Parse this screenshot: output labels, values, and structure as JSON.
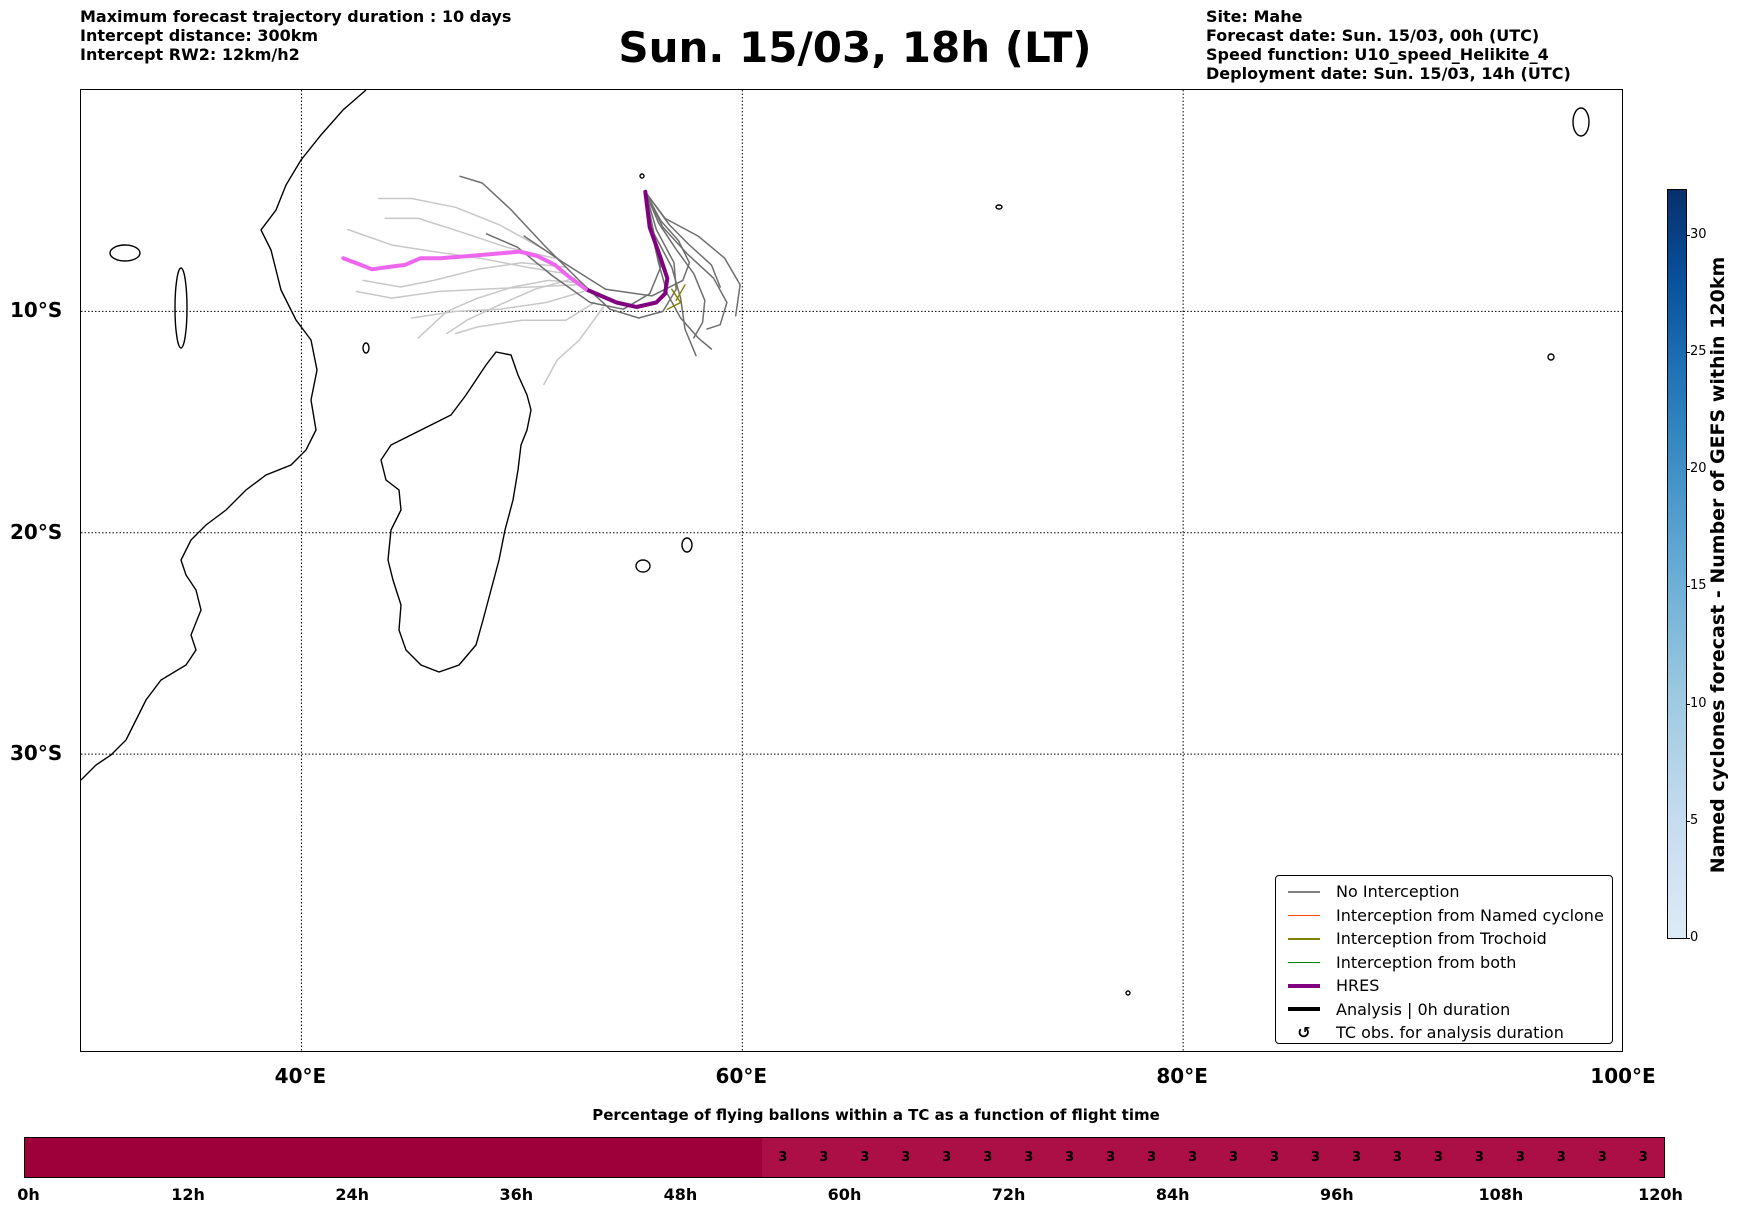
{
  "header_left": {
    "line1": "Maximum forecast trajectory duration : 10 days",
    "line2": "Intercept distance: 300km",
    "line3": "Intercept RW2: 12km/h2"
  },
  "title": "Sun. 15/03, 18h (LT)",
  "header_right": {
    "line1": "Site: Mahe",
    "line2": "Forecast date: Sun. 15/03, 00h (UTC)",
    "line3": "Speed function: U10_speed_Helikite_4",
    "line4": "Deployment date: Sun. 15/03, 14h (UTC)"
  },
  "map": {
    "lon_range": [
      30,
      100
    ],
    "lat_range": [
      -43.5,
      0
    ],
    "lon_ticks": [
      {
        "value": 40,
        "label": "40°E"
      },
      {
        "value": 60,
        "label": "60°E"
      },
      {
        "value": 80,
        "label": "80°E"
      },
      {
        "value": 100,
        "label": "100°E"
      }
    ],
    "lat_ticks": [
      {
        "value": -10,
        "label": "10°S"
      },
      {
        "value": -20,
        "label": "20°S"
      },
      {
        "value": -30,
        "label": "30°S"
      }
    ],
    "hres_track": {
      "color": "#800080",
      "points": [
        [
          55.6,
          -4.6
        ],
        [
          55.8,
          -6.2
        ],
        [
          56.3,
          -7.6
        ],
        [
          56.6,
          -8.5
        ],
        [
          56.5,
          -9.2
        ],
        [
          56.1,
          -9.6
        ],
        [
          55.2,
          -9.8
        ],
        [
          54.3,
          -9.6
        ],
        [
          53.6,
          -9.3
        ],
        [
          52.9,
          -9.0
        ],
        [
          52.1,
          -8.4
        ],
        [
          51.5,
          -7.9
        ],
        [
          50.7,
          -7.5
        ],
        [
          49.9,
          -7.3
        ],
        [
          48.8,
          -7.4
        ],
        [
          47.6,
          -7.5
        ],
        [
          46.3,
          -7.6
        ],
        [
          45.4,
          -7.6
        ],
        [
          44.7,
          -7.9
        ],
        [
          43.9,
          -8.0
        ],
        [
          43.2,
          -8.1
        ],
        [
          42.7,
          -7.9
        ],
        [
          41.9,
          -7.6
        ]
      ],
      "far_color": "#ee66ee"
    },
    "ensemble_tracks": [
      [
        [
          55.6,
          -4.6
        ],
        [
          56.2,
          -6.0
        ],
        [
          57.0,
          -7.2
        ],
        [
          57.8,
          -8.3
        ],
        [
          58.3,
          -9.5
        ],
        [
          58.2,
          -10.5
        ],
        [
          57.8,
          -11.2
        ]
      ],
      [
        [
          55.6,
          -4.6
        ],
        [
          56.4,
          -6.2
        ],
        [
          57.5,
          -7.4
        ],
        [
          58.7,
          -8.5
        ],
        [
          59.3,
          -9.6
        ],
        [
          59.0,
          -10.6
        ],
        [
          58.4,
          -10.8
        ]
      ],
      [
        [
          55.6,
          -4.6
        ],
        [
          56.0,
          -6.5
        ],
        [
          56.8,
          -8.0
        ],
        [
          57.2,
          -9.4
        ],
        [
          57.4,
          -10.8
        ],
        [
          57.9,
          -12.0
        ]
      ],
      [
        [
          55.6,
          -4.6
        ],
        [
          56.5,
          -5.8
        ],
        [
          58.0,
          -6.6
        ],
        [
          59.2,
          -7.6
        ],
        [
          59.9,
          -8.8
        ],
        [
          59.7,
          -10.2
        ]
      ],
      [
        [
          55.6,
          -4.6
        ],
        [
          55.9,
          -6.4
        ],
        [
          56.3,
          -8.0
        ],
        [
          55.8,
          -9.2
        ],
        [
          54.6,
          -9.9
        ],
        [
          53.1,
          -9.6
        ],
        [
          51.4,
          -8.4
        ],
        [
          49.8,
          -7.1
        ],
        [
          48.4,
          -6.5
        ]
      ],
      [
        [
          55.6,
          -4.6
        ],
        [
          56.1,
          -6.3
        ],
        [
          56.9,
          -7.8
        ],
        [
          57.0,
          -9.0
        ],
        [
          56.4,
          -10.0
        ],
        [
          55.3,
          -10.3
        ],
        [
          54.0,
          -9.9
        ],
        [
          52.6,
          -8.6
        ],
        [
          51.0,
          -7.0
        ],
        [
          49.5,
          -5.4
        ],
        [
          48.2,
          -4.2
        ],
        [
          47.2,
          -3.9
        ]
      ],
      [
        [
          55.6,
          -4.6
        ],
        [
          56.7,
          -6.1
        ],
        [
          57.6,
          -7.0
        ],
        [
          58.6,
          -7.9
        ],
        [
          59.0,
          -8.9
        ]
      ],
      [
        [
          55.6,
          -4.6
        ],
        [
          55.8,
          -6.0
        ],
        [
          56.2,
          -7.8
        ],
        [
          56.6,
          -9.2
        ],
        [
          57.2,
          -10.3
        ],
        [
          58.0,
          -11.2
        ],
        [
          58.6,
          -11.7
        ]
      ],
      [
        [
          55.6,
          -4.6
        ],
        [
          56.3,
          -5.9
        ],
        [
          57.1,
          -6.8
        ],
        [
          57.6,
          -7.8
        ],
        [
          57.3,
          -8.6
        ],
        [
          55.9,
          -9.3
        ],
        [
          53.8,
          -9.0
        ],
        [
          51.9,
          -7.8
        ],
        [
          50.1,
          -6.6
        ]
      ]
    ],
    "far_tracks": [
      [
        [
          51.0,
          -7.2
        ],
        [
          49.0,
          -6.1
        ],
        [
          47.0,
          -5.3
        ],
        [
          45.0,
          -4.9
        ],
        [
          43.5,
          -4.9
        ]
      ],
      [
        [
          51.5,
          -7.6
        ],
        [
          49.3,
          -7.1
        ],
        [
          47.2,
          -6.4
        ],
        [
          45.3,
          -5.8
        ],
        [
          43.8,
          -5.8
        ]
      ],
      [
        [
          52.0,
          -8.3
        ],
        [
          50.2,
          -8.0
        ],
        [
          48.1,
          -7.6
        ],
        [
          46.0,
          -7.3
        ],
        [
          44.1,
          -7.0
        ],
        [
          42.1,
          -6.3
        ]
      ],
      [
        [
          52.5,
          -8.8
        ],
        [
          50.4,
          -8.9
        ],
        [
          48.2,
          -9.0
        ],
        [
          46.2,
          -9.1
        ],
        [
          44.1,
          -9.4
        ],
        [
          42.5,
          -9.1
        ]
      ],
      [
        [
          52.8,
          -9.1
        ],
        [
          51.1,
          -9.6
        ],
        [
          49.0,
          -9.9
        ],
        [
          47.0,
          -10.0
        ],
        [
          45.0,
          -10.3
        ]
      ],
      [
        [
          53.3,
          -9.6
        ],
        [
          52.0,
          -10.4
        ],
        [
          50.0,
          -10.4
        ],
        [
          48.0,
          -10.7
        ],
        [
          47.0,
          -11.0
        ]
      ],
      [
        [
          53.7,
          -9.8
        ],
        [
          52.6,
          -11.3
        ],
        [
          51.6,
          -12.2
        ],
        [
          51.0,
          -13.3
        ]
      ],
      [
        [
          52.6,
          -8.7
        ],
        [
          51.2,
          -8.6
        ],
        [
          49.6,
          -8.9
        ],
        [
          48.0,
          -9.4
        ],
        [
          46.6,
          -10.0
        ],
        [
          45.3,
          -11.2
        ]
      ],
      [
        [
          52.0,
          -8.0
        ],
        [
          50.0,
          -7.8
        ],
        [
          48.0,
          -8.1
        ],
        [
          46.0,
          -8.6
        ],
        [
          44.5,
          -8.9
        ],
        [
          42.8,
          -8.6
        ]
      ],
      [
        [
          52.4,
          -8.5
        ],
        [
          50.6,
          -9.0
        ],
        [
          49.0,
          -9.7
        ],
        [
          47.5,
          -10.4
        ],
        [
          46.6,
          -11.0
        ]
      ]
    ],
    "trochoid_color": "#808000"
  },
  "legend": {
    "items": [
      {
        "label": "No Interception",
        "color": "#808080",
        "style": "thin"
      },
      {
        "label": "Interception from Named cyclone",
        "color": "#ff4500",
        "style": "thin"
      },
      {
        "label": "Interception from Trochoid",
        "color": "#808000",
        "style": "thin"
      },
      {
        "label": "Interception from both",
        "color": "#008000",
        "style": "thin"
      },
      {
        "label": "HRES",
        "color": "#800080",
        "style": "thick"
      },
      {
        "label": "Analysis | 0h duration",
        "color": "#000000",
        "style": "thick"
      },
      {
        "label": "TC obs. for analysis duration",
        "color": "#000000",
        "style": "symbol",
        "symbol": "↺"
      }
    ]
  },
  "colorbar": {
    "label": "Named cyclones forecast - Number of GEFS within 120km",
    "min": 0,
    "max": 32,
    "ticks": [
      0,
      5,
      10,
      15,
      20,
      25,
      30
    ]
  },
  "timebar": {
    "title": "Percentage of flying ballons within a TC as a function of flight time",
    "max_hours": 120,
    "tick_labels": [
      "0h",
      "12h",
      "24h",
      "36h",
      "48h",
      "60h",
      "72h",
      "84h",
      "96h",
      "108h",
      "120h"
    ],
    "tick_values": [
      0,
      12,
      24,
      36,
      48,
      60,
      72,
      84,
      96,
      108,
      120
    ],
    "cells_before": 18,
    "cells_with_values": [
      "3",
      "3",
      "3",
      "3",
      "3",
      "3",
      "3",
      "3",
      "3",
      "3",
      "3",
      "3",
      "3",
      "3",
      "3",
      "3",
      "3",
      "3",
      "3",
      "3",
      "3",
      "3"
    ],
    "color_zero": "#9e003a",
    "color_value": "#ab0f45"
  }
}
